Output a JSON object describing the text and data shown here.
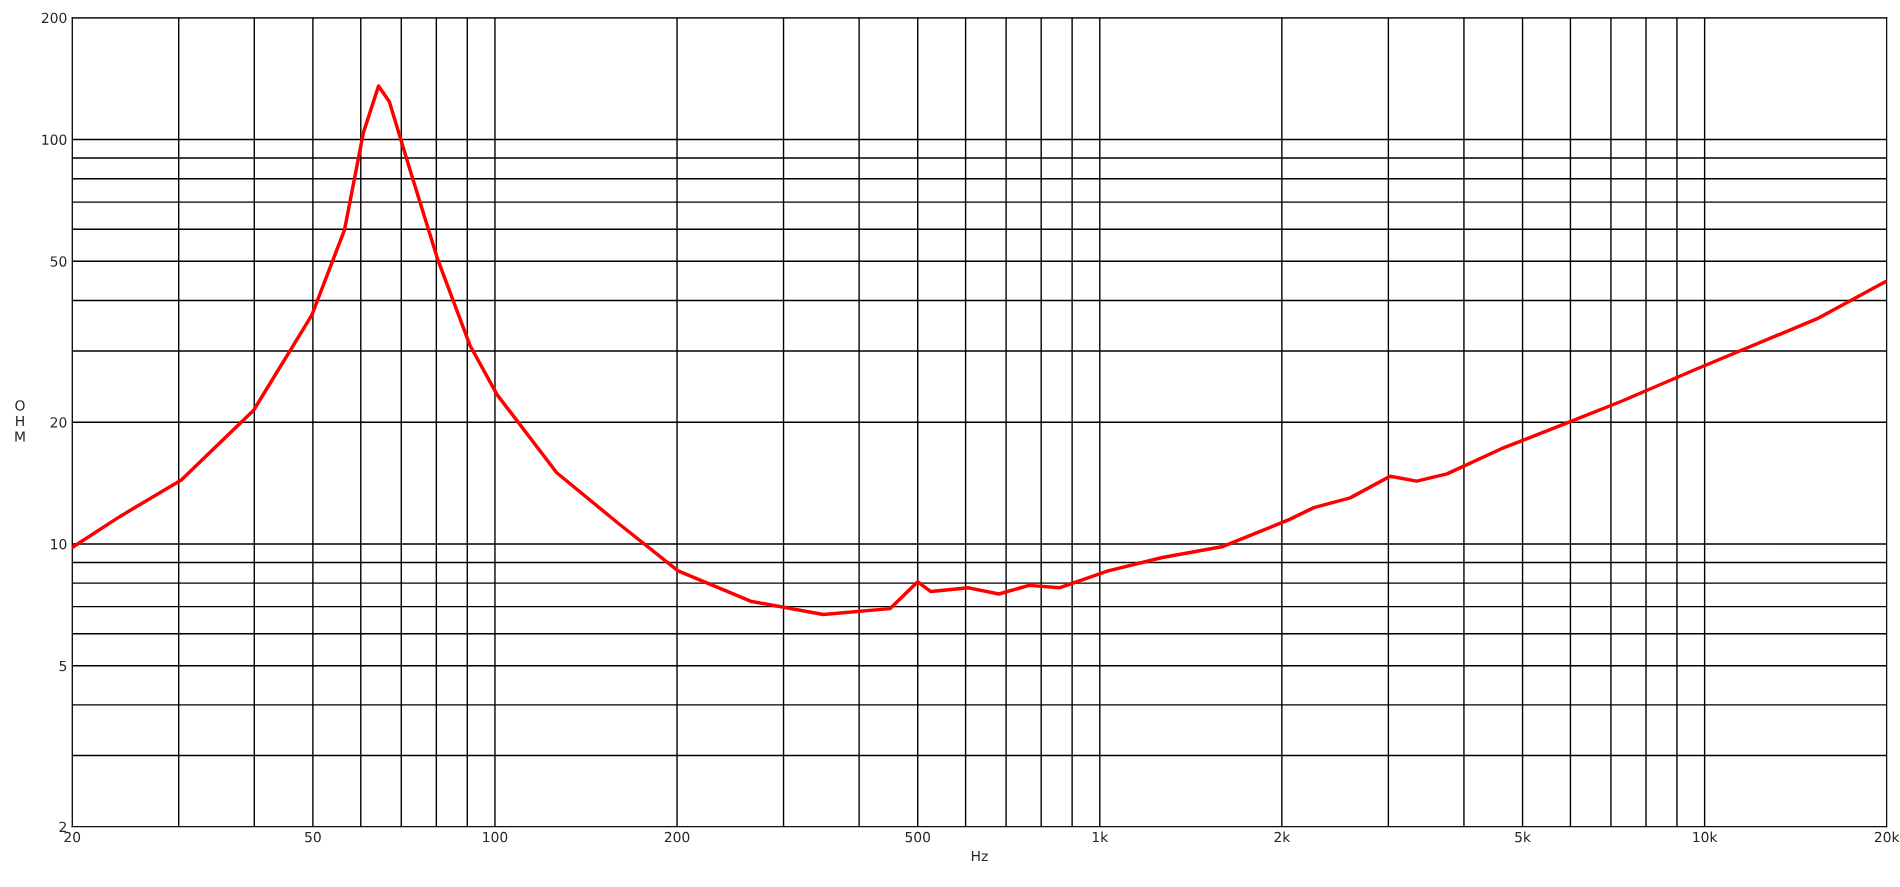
{
  "chart_data": {
    "type": "line",
    "xlabel": "Hz",
    "ylabel": "OHM",
    "log": "xy",
    "grid": true,
    "marker": "none",
    "line_style": "solid",
    "xlim": [
      20,
      20000
    ],
    "ylim": [
      2,
      200
    ],
    "xticks": [
      20,
      {
        "value": 30,
        "label": null
      },
      {
        "value": 40,
        "label": null
      },
      50,
      {
        "value": 60,
        "label": null
      },
      {
        "value": 70,
        "label": null
      },
      {
        "value": 80,
        "label": null
      },
      {
        "value": 90,
        "label": null
      },
      100,
      200,
      {
        "value": 300,
        "label": null
      },
      {
        "value": 400,
        "label": null
      },
      500,
      {
        "value": 600,
        "label": null
      },
      {
        "value": 700,
        "label": null
      },
      {
        "value": 800,
        "label": null
      },
      {
        "value": 900,
        "label": null
      },
      {
        "value": 1000,
        "label": "1k"
      },
      {
        "value": 2000,
        "label": "2k"
      },
      {
        "value": 3000,
        "label": null
      },
      {
        "value": 4000,
        "label": null
      },
      {
        "value": 5000,
        "label": "5k"
      },
      {
        "value": 6000,
        "label": null
      },
      {
        "value": 7000,
        "label": null
      },
      {
        "value": 8000,
        "label": null
      },
      {
        "value": 9000,
        "label": null
      },
      {
        "value": 10000,
        "label": "10k"
      },
      {
        "value": 20000,
        "label": "20k"
      }
    ],
    "yticks": [
      2,
      {
        "value": 3,
        "label": null
      },
      {
        "value": 4,
        "label": null
      },
      5,
      {
        "value": 6,
        "label": null
      },
      {
        "value": 7,
        "label": null
      },
      {
        "value": 8,
        "label": null
      },
      {
        "value": 9,
        "label": null
      },
      10,
      20,
      {
        "value": 30,
        "label": null
      },
      {
        "value": 40,
        "label": null
      },
      50,
      {
        "value": 60,
        "label": null
      },
      {
        "value": 70,
        "label": null
      },
      {
        "value": 80,
        "label": null
      },
      {
        "value": 90,
        "label": null
      },
      100,
      200
    ],
    "series": [
      {
        "color": "#ff0000",
        "x": [
          20,
          24,
          30.3,
          39.9,
          49.8,
          56.4,
          60.6,
          64.2,
          66.9,
          72.8,
          80.5,
          90.9,
          100.8,
          126.5,
          159.3,
          200.8,
          264.6,
          348.9,
          449.8,
          500,
          525,
          606.9,
          681,
          764,
          857,
          1032,
          1269,
          1599,
          2060,
          2259,
          2594,
          3020,
          3342,
          3750,
          4613,
          5813,
          7321,
          9654,
          15320,
          20000
        ],
        "values": [
          9.8,
          11.7,
          14.4,
          21.4,
          36.8,
          59.8,
          104,
          135.6,
          124,
          81.7,
          50.3,
          31,
          23.4,
          15,
          11.3,
          8.58,
          7.22,
          6.69,
          6.92,
          8.06,
          7.63,
          7.79,
          7.52,
          7.9,
          7.79,
          8.58,
          9.26,
          9.86,
          11.5,
          12.3,
          13,
          14.7,
          14.3,
          14.9,
          17.2,
          19.7,
          22.6,
          27,
          36,
          44.7
        ]
      }
    ]
  }
}
